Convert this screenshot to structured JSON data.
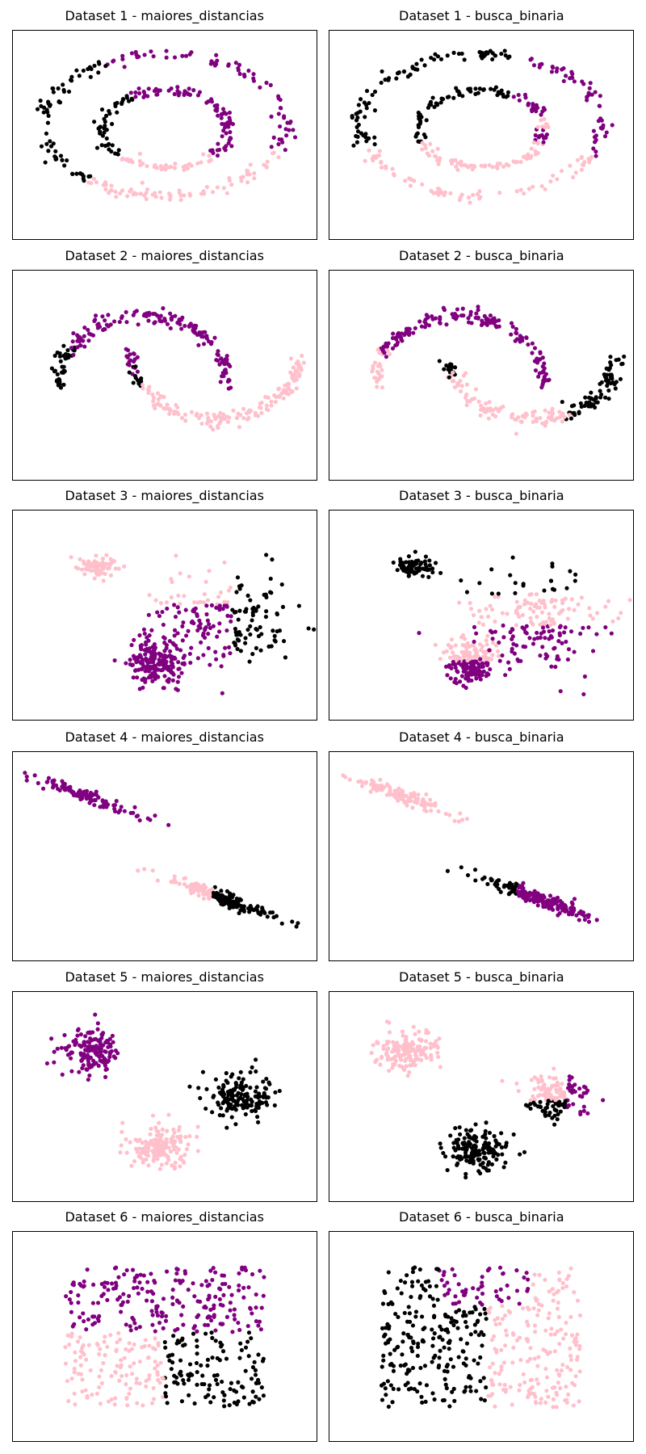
{
  "figure": {
    "colors": {
      "cluster_purple": "#800080",
      "cluster_black": "#000000",
      "cluster_pink": "#ffc0cb"
    },
    "panel_titles": [
      "Dataset 1 - maiores_distancias",
      "Dataset 1 - busca_binaria",
      "Dataset 2 - maiores_distancias",
      "Dataset 2 - busca_binaria",
      "Dataset 3 - maiores_distancias",
      "Dataset 3 - busca_binaria",
      "Dataset 4 - maiores_distancias",
      "Dataset 4 - busca_binaria",
      "Dataset 5 - maiores_distancias",
      "Dataset 5 - busca_binaria",
      "Dataset 6 - maiores_distancias",
      "Dataset 6 - busca_binaria"
    ]
  },
  "chart_data": [
    {
      "type": "scatter",
      "title": "Dataset 1 - maiores_distancias",
      "dataset": "circles",
      "axes_ticks": "none",
      "clusters": [
        {
          "color": "#000000",
          "region": "left half of outer ring and left part of inner ring"
        },
        {
          "color": "#800080",
          "region": "top and right of outer ring, top-right of inner ring"
        },
        {
          "color": "#ffc0cb",
          "region": "bottom of outer ring and bottom of inner ring"
        }
      ]
    },
    {
      "type": "scatter",
      "title": "Dataset 1 - busca_binaria",
      "dataset": "circles",
      "axes_ticks": "none",
      "clusters": [
        {
          "color": "#000000",
          "region": "upper-left of both rings"
        },
        {
          "color": "#800080",
          "region": "right of outer ring and upper-right of inner ring"
        },
        {
          "color": "#ffc0cb",
          "region": "bottom of both rings"
        }
      ]
    },
    {
      "type": "scatter",
      "title": "Dataset 2 - maiores_distancias",
      "dataset": "moons",
      "axes_ticks": "none",
      "clusters": [
        {
          "color": "#000000",
          "region": "left tip of upper moon, lower tip of inner moon start"
        },
        {
          "color": "#800080",
          "region": "upper moon body and start of lower moon"
        },
        {
          "color": "#ffc0cb",
          "region": "lower moon"
        }
      ]
    },
    {
      "type": "scatter",
      "title": "Dataset 2 - busca_binaria",
      "dataset": "moons",
      "axes_ticks": "none",
      "clusters": [
        {
          "color": "#000000",
          "region": "right end of lower moon"
        },
        {
          "color": "#800080",
          "region": "upper moon"
        },
        {
          "color": "#ffc0cb",
          "region": "left tip of upper moon and lower moon left part"
        }
      ]
    },
    {
      "type": "scatter",
      "title": "Dataset 3 - maiores_distancias",
      "dataset": "varied blobs",
      "axes_ticks": "none",
      "clusters": [
        {
          "color": "#ffc0cb",
          "region": "small blob top-left and upper spread"
        },
        {
          "color": "#800080",
          "region": "dense bottom blob and middle spread"
        },
        {
          "color": "#000000",
          "region": "right part of spread blob"
        }
      ]
    },
    {
      "type": "scatter",
      "title": "Dataset 3 - busca_binaria",
      "dataset": "varied blobs",
      "axes_ticks": "none",
      "clusters": [
        {
          "color": "#000000",
          "region": "small blob top-left and top of spread"
        },
        {
          "color": "#ffc0cb",
          "region": "upper spread and upper dense blob"
        },
        {
          "color": "#800080",
          "region": "lower dense blob and lower spread"
        }
      ]
    },
    {
      "type": "scatter",
      "title": "Dataset 4 - maiores_distancias",
      "dataset": "anisotropic blobs",
      "axes_ticks": "none",
      "clusters": [
        {
          "color": "#800080",
          "region": "top-left elongated blob"
        },
        {
          "color": "#ffc0cb",
          "region": "lower elongated blobs left part"
        },
        {
          "color": "#000000",
          "region": "lower elongated blobs right part"
        }
      ]
    },
    {
      "type": "scatter",
      "title": "Dataset 4 - busca_binaria",
      "dataset": "anisotropic blobs",
      "axes_ticks": "none",
      "clusters": [
        {
          "color": "#ffc0cb",
          "region": "top-left elongated blob"
        },
        {
          "color": "#000000",
          "region": "upper-left of lower blobs"
        },
        {
          "color": "#800080",
          "region": "lower blobs"
        }
      ]
    },
    {
      "type": "scatter",
      "title": "Dataset 5 - maiores_distancias",
      "dataset": "blobs",
      "axes_ticks": "none",
      "clusters": [
        {
          "color": "#800080",
          "region": "top-left blob"
        },
        {
          "color": "#000000",
          "region": "right blob"
        },
        {
          "color": "#ffc0cb",
          "region": "bottom blob"
        }
      ]
    },
    {
      "type": "scatter",
      "title": "Dataset 5 - busca_binaria",
      "dataset": "blobs",
      "axes_ticks": "none",
      "clusters": [
        {
          "color": "#ffc0cb",
          "region": "top-left blob and left of right blob"
        },
        {
          "color": "#800080",
          "region": "right of right blob"
        },
        {
          "color": "#000000",
          "region": "bottom of right blob and bottom blob"
        }
      ]
    },
    {
      "type": "scatter",
      "title": "Dataset 6 - maiores_distancias",
      "dataset": "uniform",
      "axes_ticks": "none",
      "clusters": [
        {
          "color": "#800080",
          "region": "top half"
        },
        {
          "color": "#ffc0cb",
          "region": "bottom-left"
        },
        {
          "color": "#000000",
          "region": "bottom-right"
        }
      ]
    },
    {
      "type": "scatter",
      "title": "Dataset 6 - busca_binaria",
      "dataset": "uniform",
      "axes_ticks": "none",
      "clusters": [
        {
          "color": "#000000",
          "region": "left"
        },
        {
          "color": "#800080",
          "region": "top-center"
        },
        {
          "color": "#ffc0cb",
          "region": "right"
        }
      ]
    }
  ]
}
